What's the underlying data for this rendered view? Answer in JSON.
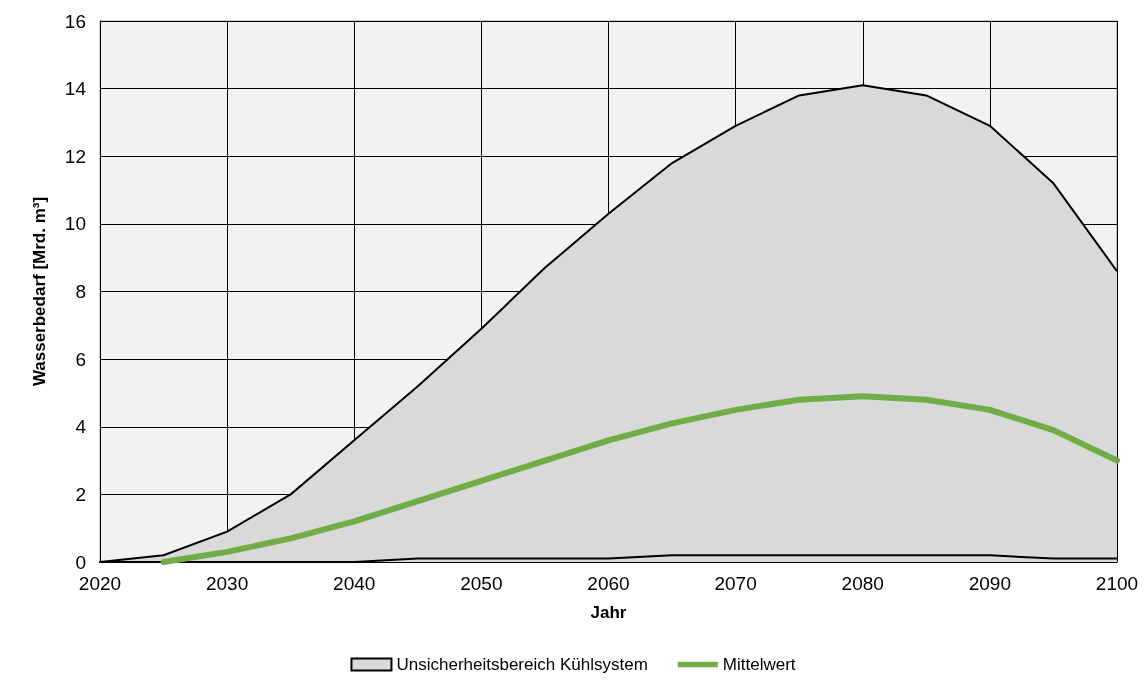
{
  "chart_data": {
    "type": "line",
    "xlabel": "Jahr",
    "ylabel": "Wasserbedarf [Mrd. m³]",
    "x": [
      2020,
      2025,
      2030,
      2035,
      2040,
      2045,
      2050,
      2055,
      2060,
      2065,
      2070,
      2075,
      2080,
      2085,
      2090,
      2095,
      2100
    ],
    "series": [
      {
        "name": "Unsicherheitsbereich Kühlsystem",
        "type": "area",
        "color": "#d9d9d9",
        "values": [
          0,
          0.2,
          0.9,
          2.0,
          3.6,
          5.2,
          6.9,
          8.7,
          10.3,
          11.8,
          12.9,
          13.8,
          14.1,
          13.8,
          12.9,
          11.2,
          8.6
        ]
      },
      {
        "color": "#000000",
        "values": [
          0,
          0,
          0,
          0,
          0,
          0.1,
          0.1,
          0.1,
          0.1,
          0.2,
          0.2,
          0.2,
          0.2,
          0.2,
          0.2,
          0.1,
          0.1
        ]
      },
      {
        "name": "Mittelwert",
        "color": "#70ad47",
        "values": [
          null,
          0,
          0.3,
          0.7,
          1.2,
          1.8,
          2.4,
          3.0,
          3.6,
          4.1,
          4.5,
          4.8,
          4.9,
          4.8,
          4.5,
          3.9,
          3.0
        ]
      }
    ],
    "xlim": [
      2020,
      2100
    ],
    "xticks": [
      2020,
      2030,
      2040,
      2050,
      2060,
      2070,
      2080,
      2090,
      2100
    ],
    "ylim": [
      0,
      16
    ],
    "yticks": [
      0,
      2,
      4,
      6,
      8,
      10,
      12,
      14,
      16
    ],
    "grid": true,
    "legend": "bottom",
    "marker": "none"
  }
}
